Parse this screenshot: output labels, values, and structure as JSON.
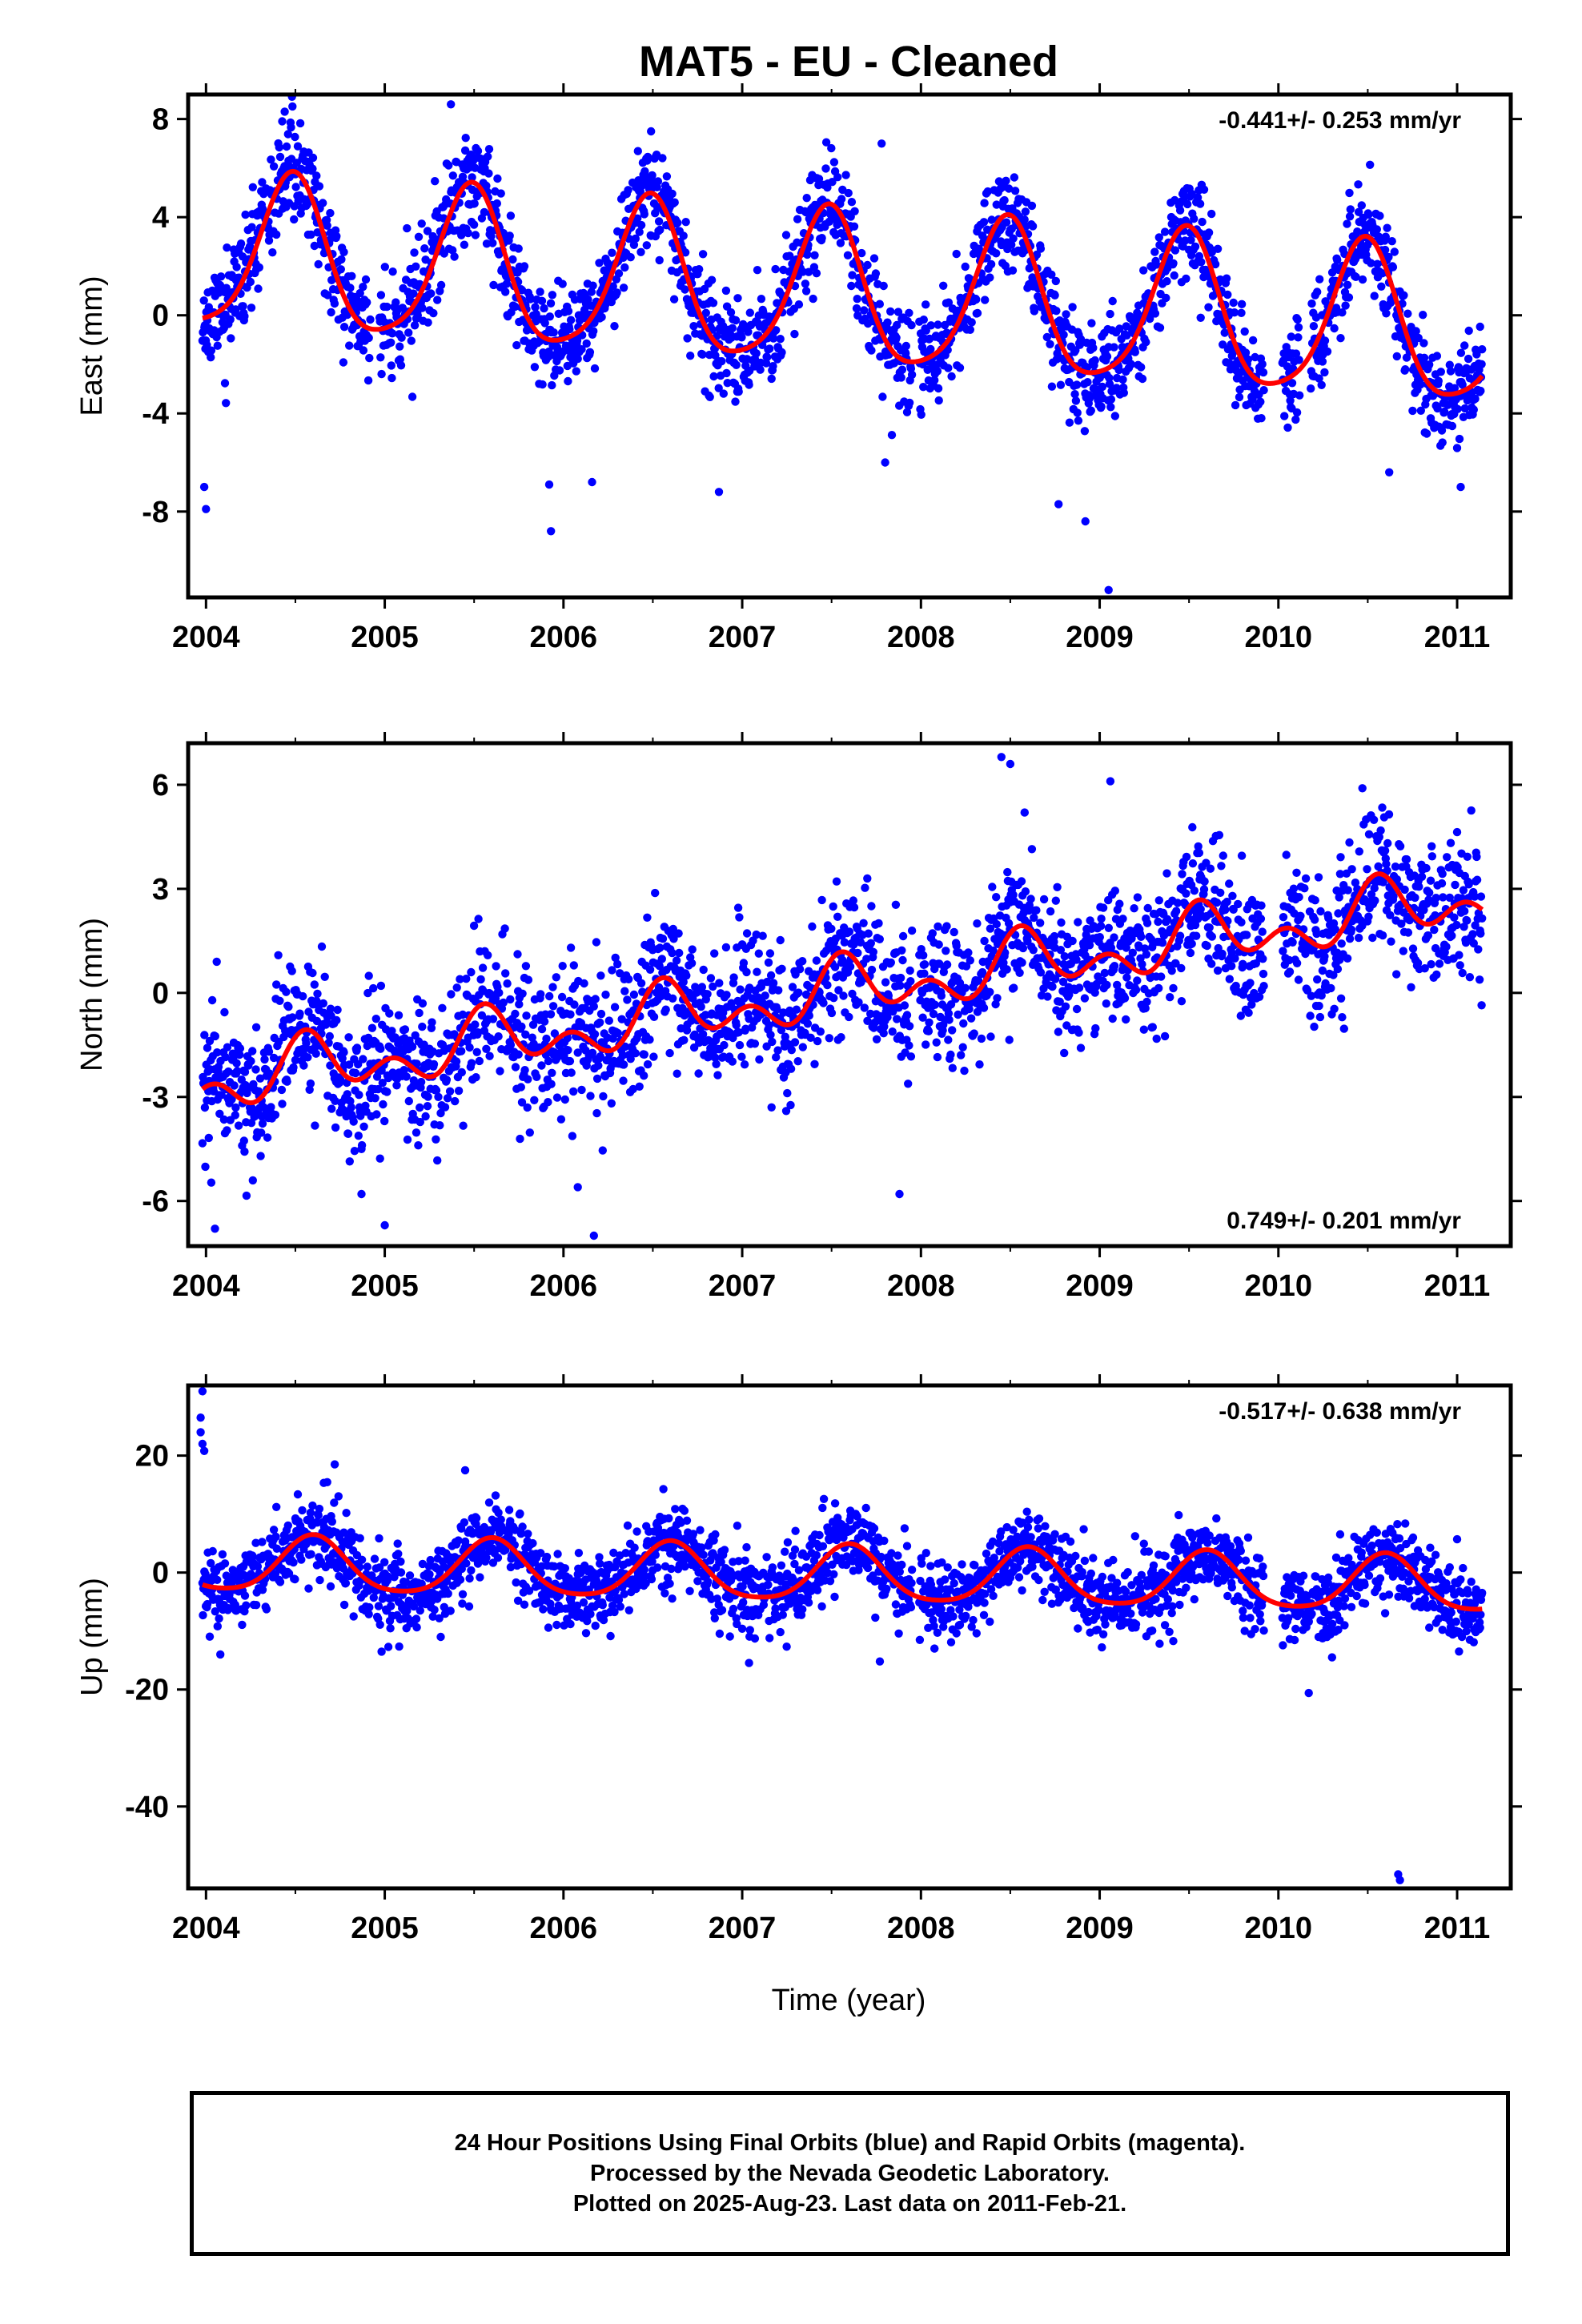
{
  "title": "MAT5  - EU - Cleaned",
  "xlabel": "Time (year)",
  "footer": {
    "line1": "24 Hour Positions Using Final Orbits (blue) and Rapid Orbits (magenta).",
    "line2": "Processed by the Nevada Geodetic Laboratory.",
    "line3": "Plotted on 2025-Aug-23. Last data on 2011-Feb-21."
  },
  "colors": {
    "points": "#0000ff",
    "fit": "#ff0000",
    "axes": "#000000"
  },
  "chart_data": [
    {
      "type": "scatter",
      "ylabel": "East (mm)",
      "rate_label": "-0.441+/- 0.253 mm/yr",
      "xlim": [
        2003.9,
        2011.3
      ],
      "ylim": [
        -11.5,
        9
      ],
      "xticks": [
        2004,
        2005,
        2006,
        2007,
        2008,
        2009,
        2010,
        2011
      ],
      "xtick_labels": [
        "2004",
        "2005",
        "2006",
        "2007",
        "2008",
        "2009",
        "2010",
        "2011"
      ],
      "yticks": [
        8,
        4,
        0,
        -4,
        -8
      ],
      "ytick_labels": [
        "8",
        "4",
        "0",
        "-4",
        "-8"
      ],
      "x_start": 2003.98,
      "x_end": 2011.14,
      "model": {
        "offset": 0.9,
        "trend": -0.441,
        "epoch": 2007.5,
        "annual_amp": 3.1,
        "annual_peak": 2004.48,
        "semi_amp": 0.55,
        "semi_peak": 2004.5
      },
      "scatter_sd": 1.05,
      "seed": 11,
      "gaps": [
        [
          2004.92,
          2004.97
        ],
        [
          2007.95,
          2007.99
        ],
        [
          2009.92,
          2010.02
        ],
        [
          2010.12,
          2010.18
        ]
      ],
      "outliers": [
        [
          2004.0,
          -7.9
        ],
        [
          2003.99,
          -7.0
        ],
        [
          2005.92,
          -6.9
        ],
        [
          2005.93,
          -8.8
        ],
        [
          2006.16,
          -6.8
        ],
        [
          2006.87,
          -7.2
        ],
        [
          2009.05,
          -11.2
        ],
        [
          2008.92,
          -8.4
        ],
        [
          2008.77,
          -7.7
        ],
        [
          2007.78,
          7.0
        ],
        [
          2005.37,
          8.6
        ],
        [
          2004.44,
          8.3
        ],
        [
          2006.49,
          7.5
        ],
        [
          2010.62,
          -6.4
        ],
        [
          2011.02,
          -7.0
        ],
        [
          2007.8,
          -6.0
        ]
      ]
    },
    {
      "type": "scatter",
      "ylabel": "North (mm)",
      "rate_label": "0.749+/- 0.201 mm/yr",
      "xlim": [
        2003.9,
        2011.3
      ],
      "ylim": [
        -7.3,
        7.2
      ],
      "xticks": [
        2004,
        2005,
        2006,
        2007,
        2008,
        2009,
        2010,
        2011
      ],
      "xtick_labels": [
        "2004",
        "2005",
        "2006",
        "2007",
        "2008",
        "2009",
        "2010",
        "2011"
      ],
      "yticks": [
        6,
        3,
        0,
        -3,
        -6
      ],
      "ytick_labels": [
        "6",
        "3",
        "0",
        "-3",
        "-6"
      ],
      "x_start": 2003.98,
      "x_end": 2011.14,
      "model": {
        "offset": 0.0,
        "trend": 0.749,
        "epoch": 2007.5,
        "annual_amp": 0.6,
        "annual_peak": 2004.58,
        "semi_amp": 0.55,
        "semi_peak": 2004.55
      },
      "scatter_sd": 1.0,
      "seed": 23,
      "gaps": [
        [
          2007.95,
          2007.99
        ],
        [
          2009.92,
          2010.02
        ]
      ],
      "outliers": [
        [
          2004.05,
          -6.8
        ],
        [
          2006.17,
          -7.0
        ],
        [
          2006.08,
          -5.6
        ],
        [
          2004.87,
          -5.8
        ],
        [
          2005.0,
          -6.7
        ],
        [
          2007.88,
          -5.8
        ],
        [
          2008.45,
          6.8
        ],
        [
          2008.5,
          6.6
        ],
        [
          2009.06,
          6.1
        ],
        [
          2010.47,
          5.9
        ],
        [
          2004.06,
          0.9
        ],
        [
          2007.7,
          3.3
        ],
        [
          2008.58,
          5.2
        ]
      ]
    },
    {
      "type": "scatter",
      "ylabel": "Up (mm)",
      "rate_label": "-0.517+/- 0.638 mm/yr",
      "xlim": [
        2003.9,
        2011.3
      ],
      "ylim": [
        -54,
        32
      ],
      "xticks": [
        2004,
        2005,
        2006,
        2007,
        2008,
        2009,
        2010,
        2011
      ],
      "xtick_labels": [
        "2004",
        "2005",
        "2006",
        "2007",
        "2008",
        "2009",
        "2010",
        "2011"
      ],
      "yticks": [
        20,
        0,
        -20,
        -40
      ],
      "ytick_labels": [
        "20",
        "0",
        "-20",
        "-40"
      ],
      "x_start": 2003.98,
      "x_end": 2011.14,
      "model": {
        "offset": -0.5,
        "trend": -0.517,
        "epoch": 2007.5,
        "annual_amp": 4.7,
        "annual_peak": 2004.6,
        "semi_amp": 0.8,
        "semi_peak": 2004.6
      },
      "scatter_sd": 3.4,
      "seed": 37,
      "gaps": [
        [
          2007.95,
          2007.99
        ],
        [
          2009.92,
          2010.02
        ]
      ],
      "outliers": [
        [
          2003.98,
          31.0
        ],
        [
          2003.97,
          26.5
        ],
        [
          2003.97,
          24.0
        ],
        [
          2003.98,
          22.0
        ],
        [
          2003.99,
          20.8
        ],
        [
          2010.67,
          -51.6
        ],
        [
          2010.68,
          -52.6
        ],
        [
          2010.17,
          -20.6
        ],
        [
          2004.08,
          -14.0
        ],
        [
          2007.77,
          -15.2
        ],
        [
          2010.3,
          -14.5
        ],
        [
          2005.45,
          17.5
        ],
        [
          2004.72,
          18.5
        ]
      ]
    }
  ]
}
